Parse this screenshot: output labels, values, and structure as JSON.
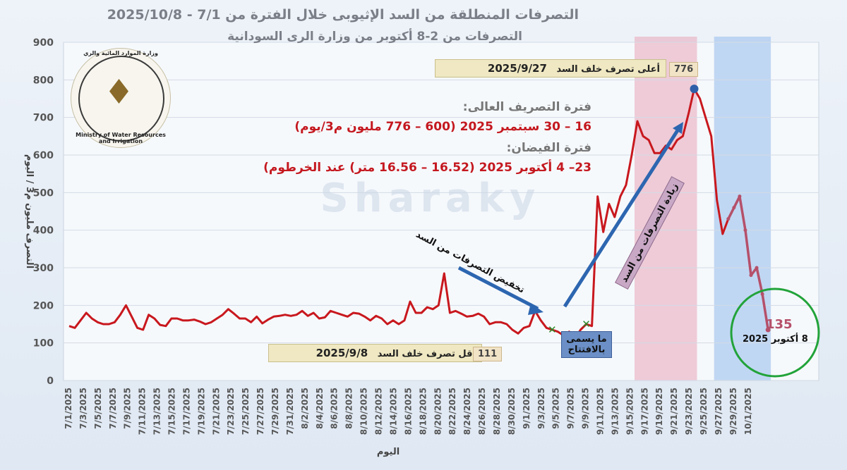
{
  "title": "التصرفات المنطلقة من السد الإثيوبى خلال الفترة من 7/1 - 2025/10/8",
  "subtitle": "التصرفات من 2-8 أكتوبر من وزارة الرى السودانية",
  "info": {
    "high_head": "فترة التصريف العالى:",
    "high_text": "16 – 30 سبتمبر 2025 (600 – 776 مليون م3/يوم)",
    "flood_head": "فترة الفيضان:",
    "flood_text": "23– 4 أكتوبر 2025 (16.52 – 16.56 متر) عند الخرطوم)"
  },
  "annotations": {
    "max_label": "أعلى تصرف خلف السد",
    "max_date": "2025/9/27",
    "max_value": "776",
    "min_label": "أقل تصرف خلف السد",
    "min_date": "2025/9/8",
    "min_value": "111",
    "reduce_arrow": "تخفيض التصرفات من السد",
    "increase_arrow": "زيادة التصرفات من السد",
    "opening_note": "ما يسمى بالافتتاح",
    "end_value": "135",
    "end_date": "8 أكتوبر 2025"
  },
  "logo": {
    "arabic": "وزارة الموارد المائية والري",
    "english": "Ministry of Water Resources and Irrigation"
  },
  "watermark": "Sharaky",
  "colors": {
    "line": "#c8181e",
    "sudan_line": "#b5506a",
    "pink_band": "#e8a6b8",
    "blue_band": "#9dc0ec",
    "marker": "#2f5fa8",
    "circle": "#22a33a"
  },
  "chart_data": {
    "type": "line",
    "title": "التصرفات المنطلقة من السد الإثيوبى خلال الفترة من 7/1 - 2025/10/8",
    "xlabel": "اليوم",
    "ylabel": "التصرف مليون م3 / اليوم",
    "ylim": [
      0,
      900
    ],
    "yticks": [
      0,
      100,
      200,
      300,
      400,
      500,
      600,
      700,
      800,
      900
    ],
    "grid": "horizontal",
    "xticks": [
      "7/1/2025",
      "7/3/2025",
      "7/5/2025",
      "7/7/2025",
      "7/9/2025",
      "7/11/2025",
      "7/13/2025",
      "7/15/2025",
      "7/17/2025",
      "7/19/2025",
      "7/21/2025",
      "7/23/2025",
      "7/25/2025",
      "7/27/2025",
      "7/29/2025",
      "7/31/2025",
      "8/2/2025",
      "8/4/2025",
      "8/6/2025",
      "8/8/2025",
      "8/10/2025",
      "8/12/2025",
      "8/14/2025",
      "8/16/2025",
      "8/18/2025",
      "8/20/2025",
      "8/22/2025",
      "8/24/2025",
      "8/26/2025",
      "8/28/2025",
      "8/30/2025",
      "9/1/2025",
      "9/3/2025",
      "9/5/2025",
      "9/7/2025",
      "9/9/2025",
      "9/11/2025",
      "9/13/2025",
      "9/15/2025",
      "9/17/2025",
      "9/19/2025",
      "9/21/2025",
      "9/23/2025",
      "9/25/2025",
      "9/27/2025",
      "9/29/2025",
      "10/1/2025"
    ],
    "series": [
      {
        "name": "",
        "values": [
          [
            0,
            145
          ],
          [
            1,
            140
          ],
          [
            2,
            160
          ],
          [
            3,
            180
          ],
          [
            4,
            165
          ],
          [
            5,
            155
          ],
          [
            6,
            150
          ],
          [
            7,
            150
          ],
          [
            8,
            155
          ],
          [
            9,
            175
          ],
          [
            10,
            200
          ],
          [
            11,
            170
          ],
          [
            12,
            140
          ],
          [
            13,
            135
          ],
          [
            14,
            175
          ],
          [
            15,
            165
          ],
          [
            16,
            148
          ],
          [
            17,
            145
          ],
          [
            18,
            165
          ],
          [
            19,
            165
          ],
          [
            20,
            160
          ],
          [
            21,
            160
          ],
          [
            22,
            162
          ],
          [
            23,
            157
          ],
          [
            24,
            150
          ],
          [
            25,
            155
          ],
          [
            26,
            165
          ],
          [
            27,
            175
          ],
          [
            28,
            190
          ],
          [
            29,
            178
          ],
          [
            30,
            165
          ],
          [
            31,
            165
          ],
          [
            32,
            155
          ],
          [
            33,
            170
          ],
          [
            34,
            152
          ],
          [
            35,
            162
          ],
          [
            36,
            170
          ],
          [
            37,
            172
          ],
          [
            38,
            175
          ],
          [
            39,
            172
          ],
          [
            40,
            175
          ],
          [
            41,
            185
          ],
          [
            42,
            172
          ],
          [
            43,
            180
          ],
          [
            44,
            165
          ],
          [
            45,
            168
          ],
          [
            46,
            185
          ],
          [
            47,
            180
          ],
          [
            48,
            175
          ],
          [
            49,
            170
          ],
          [
            50,
            180
          ],
          [
            51,
            178
          ],
          [
            52,
            170
          ],
          [
            53,
            160
          ],
          [
            54,
            172
          ],
          [
            55,
            165
          ],
          [
            56,
            150
          ],
          [
            57,
            160
          ],
          [
            58,
            150
          ],
          [
            59,
            160
          ],
          [
            60,
            210
          ],
          [
            61,
            180
          ],
          [
            62,
            180
          ],
          [
            63,
            195
          ],
          [
            64,
            190
          ],
          [
            65,
            200
          ],
          [
            66,
            285
          ],
          [
            67,
            180
          ],
          [
            68,
            185
          ],
          [
            69,
            178
          ],
          [
            70,
            170
          ],
          [
            71,
            172
          ],
          [
            72,
            178
          ],
          [
            73,
            170
          ],
          [
            74,
            150
          ],
          [
            75,
            155
          ],
          [
            76,
            155
          ],
          [
            77,
            150
          ],
          [
            78,
            135
          ],
          [
            79,
            125
          ],
          [
            80,
            140
          ],
          [
            81,
            145
          ],
          [
            82,
            185
          ],
          [
            83,
            160
          ],
          [
            84,
            140
          ],
          [
            85,
            135
          ],
          [
            86,
            130
          ],
          [
            87,
            120
          ],
          [
            88,
            130
          ],
          [
            89,
            111
          ],
          [
            90,
            135
          ],
          [
            91,
            150
          ],
          [
            92,
            145
          ],
          [
            93,
            490
          ],
          [
            94,
            395
          ],
          [
            95,
            470
          ],
          [
            96,
            435
          ],
          [
            97,
            490
          ],
          [
            98,
            520
          ],
          [
            99,
            600
          ],
          [
            100,
            690
          ],
          [
            101,
            650
          ],
          [
            102,
            640
          ],
          [
            103,
            605
          ],
          [
            104,
            605
          ],
          [
            105,
            625
          ],
          [
            106,
            615
          ],
          [
            107,
            640
          ],
          [
            108,
            650
          ],
          [
            109,
            710
          ],
          [
            110,
            776
          ],
          [
            111,
            750
          ],
          [
            112,
            700
          ],
          [
            113,
            650
          ],
          [
            114,
            480
          ],
          [
            115,
            390
          ],
          [
            116,
            430
          ]
        ]
      },
      {
        "name": "",
        "values": [
          [
            116,
            430
          ],
          [
            117,
            460
          ],
          [
            118,
            490
          ],
          [
            119,
            400
          ],
          [
            120,
            280
          ],
          [
            121,
            300
          ],
          [
            122,
            230
          ],
          [
            123,
            135
          ]
        ]
      }
    ],
    "bands": [
      {
        "label": "pink",
        "x_from": 100,
        "x_to": 110
      },
      {
        "label": "blue",
        "x_from": 114,
        "x_to": 123
      }
    ]
  }
}
